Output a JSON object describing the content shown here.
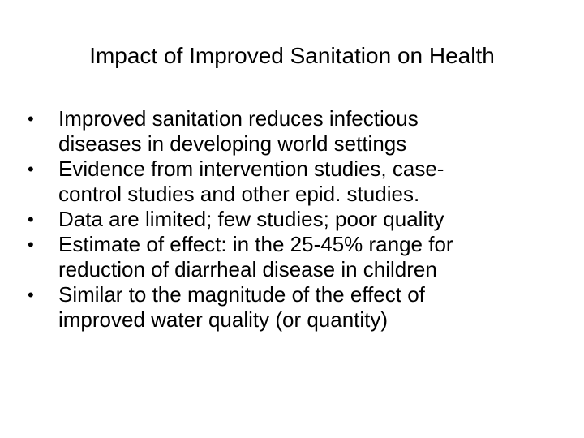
{
  "slide": {
    "title": "Impact of Improved Sanitation on Health",
    "bullet_symbol": "•",
    "bullets": [
      {
        "lines": [
          "Improved sanitation reduces infectious",
          "diseases in developing world settings"
        ]
      },
      {
        "lines": [
          "Evidence from intervention studies, case-",
          "control studies and other epid. studies."
        ]
      },
      {
        "lines": [
          "Data are limited; few studies; poor quality"
        ]
      },
      {
        "lines": [
          "Estimate of effect: in the 25-45% range for",
          "reduction of diarrheal disease in children"
        ]
      },
      {
        "lines": [
          "Similar to the magnitude of the effect of",
          "improved water quality (or quantity)"
        ]
      }
    ]
  }
}
